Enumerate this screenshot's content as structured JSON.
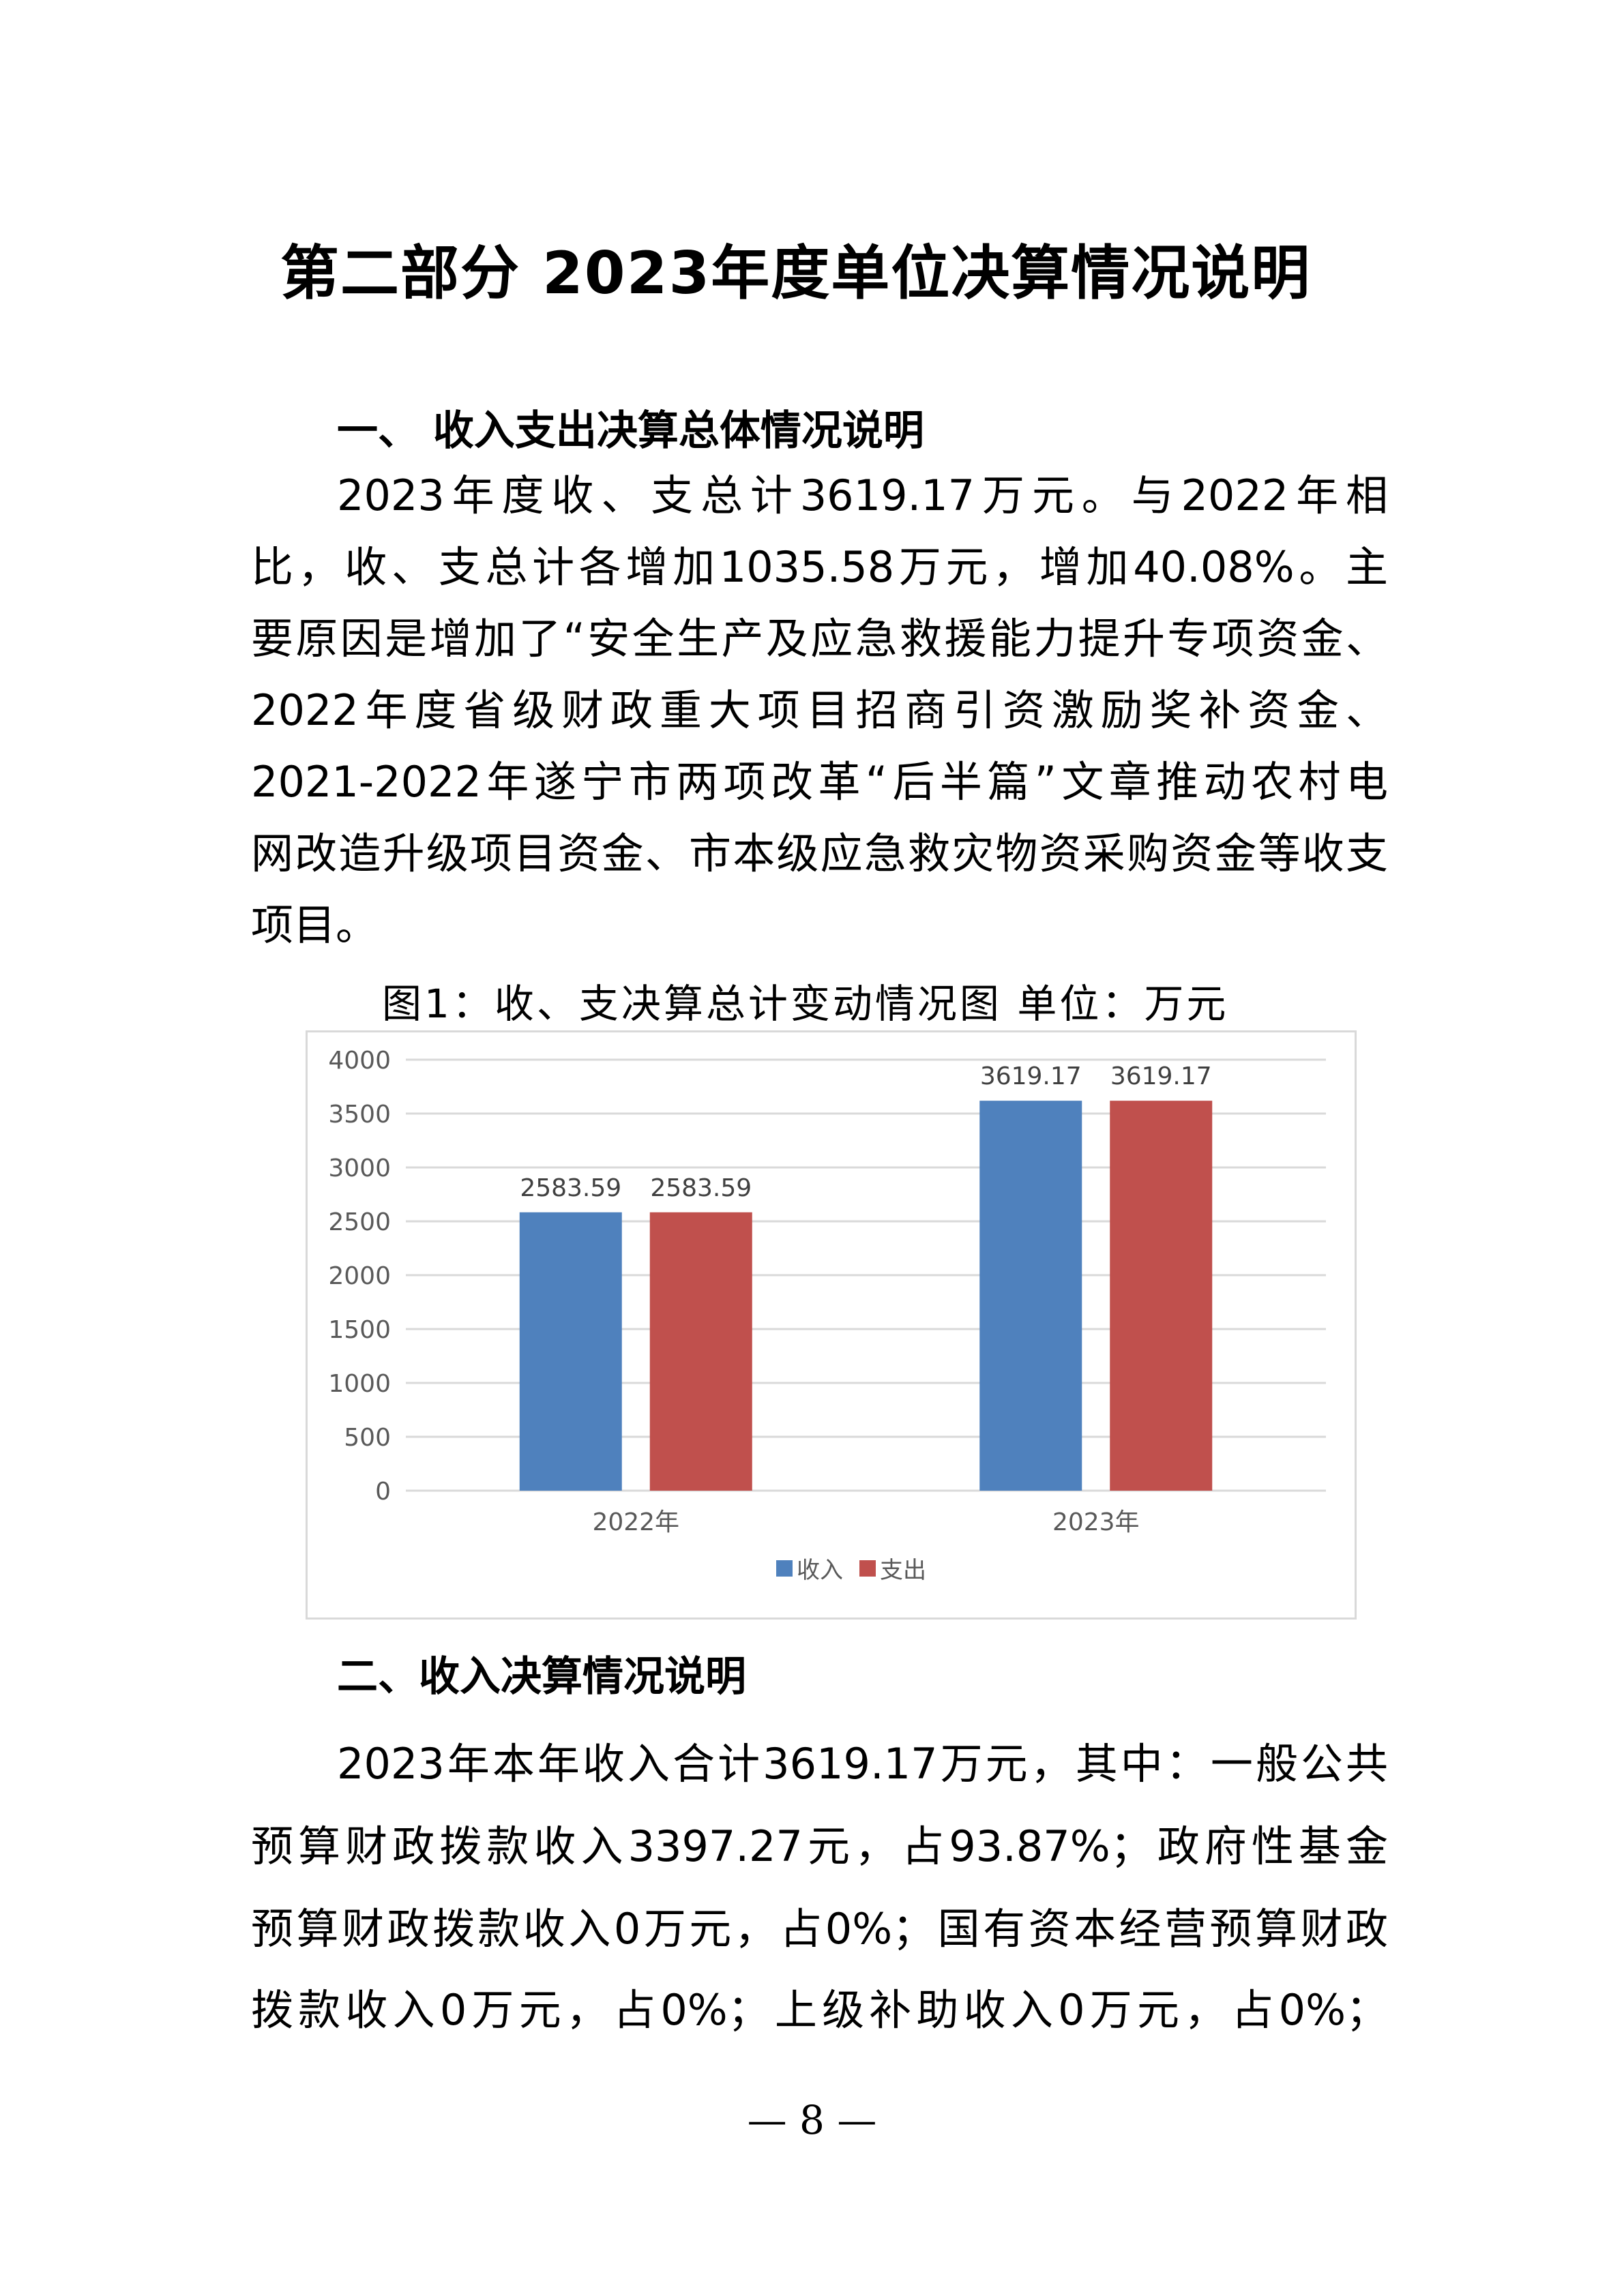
{
  "title": "第二部分  2023年度单位决算情况说明",
  "section1": {
    "heading": "一、 收入支出决算总体情况说明",
    "lines": [
      "2023年度收、支总计3619.17万元。与2022年相",
      "比，收、支总计各增加1035.58万元，增加40.08%。主",
      "要原因是增加了“安全生产及应急救援能力提升专项资金、",
      "2022年度省级财政重大项目招商引资激励奖补资金、",
      "2021-2022年遂宁市两项改革“后半篇”文章推动农村电",
      "网改造升级项目资金、市本级应急救灾物资采购资金等收支",
      "项目。"
    ],
    "caption": "图1：收、支决算总计变动情况图  单位：万元"
  },
  "chart_data": {
    "type": "bar",
    "categories": [
      "2022年",
      "2023年"
    ],
    "series": [
      {
        "name": "收入",
        "values": [
          2583.59,
          3619.17
        ],
        "color": "#4f81bd"
      },
      {
        "name": "支出",
        "values": [
          2583.59,
          3619.17
        ],
        "color": "#c0504d"
      }
    ],
    "data_labels": [
      [
        "2583.59",
        "3619.17"
      ],
      [
        "2583.59",
        "3619.17"
      ]
    ],
    "ylim": [
      0,
      4000
    ],
    "yticks": [
      "0",
      "500",
      "1000",
      "1500",
      "2000",
      "2500",
      "3000",
      "3500",
      "4000"
    ],
    "grid": true,
    "legend": "bottom"
  },
  "section2": {
    "heading": "二、收入决算情况说明",
    "lines": [
      "2023年本年收入合计3619.17万元，其中：一般公共",
      "预算财政拨款收入3397.27元，占93.87%；政府性基金",
      "预算财政拨款收入0万元，占0%；国有资本经营预算财政",
      "拨款收入0万元，占0%；上级补助收入0万元，占0%；"
    ]
  },
  "page_number": "— 8 —"
}
